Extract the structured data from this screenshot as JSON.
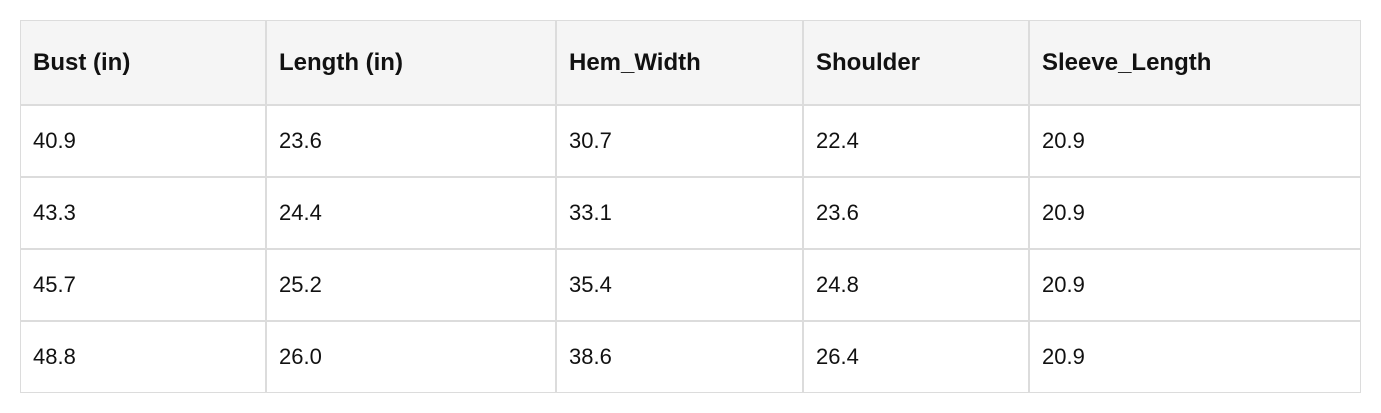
{
  "table": {
    "header": [
      "Bust (in)",
      "Length (in)",
      "Hem_Width",
      "Shoulder",
      "Sleeve_Length"
    ],
    "rows": [
      [
        "40.9",
        "23.6",
        "30.7",
        "22.4",
        "20.9"
      ],
      [
        "43.3",
        "24.4",
        "33.1",
        "23.6",
        "20.9"
      ],
      [
        "45.7",
        "25.2",
        "35.4",
        "24.8",
        "20.9"
      ],
      [
        "48.8",
        "26.0",
        "38.6",
        "26.4",
        "20.9"
      ]
    ]
  }
}
